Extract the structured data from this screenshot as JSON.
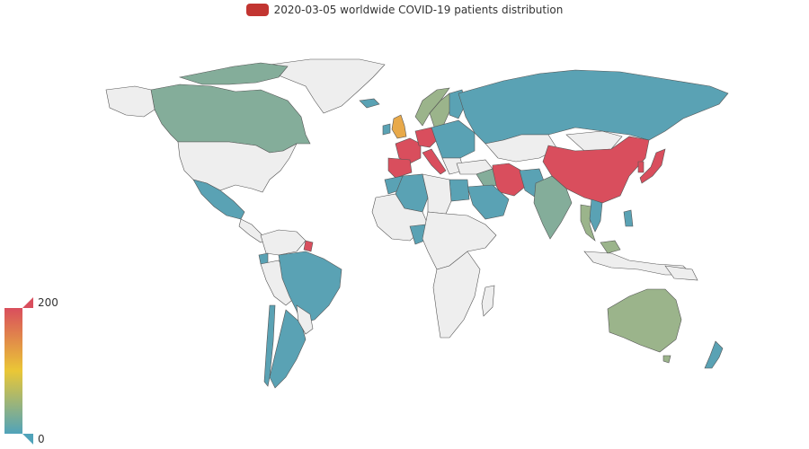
{
  "legend": {
    "label": "2020-03-05 worldwide COVID-19 patients distribution",
    "color": "#c23531"
  },
  "visual_map": {
    "max_label": "200",
    "min_label": "0",
    "colors": [
      "#d94e5d",
      "#eac736",
      "#50a3ba"
    ],
    "no_data_color": "#eeeeee",
    "border_color": "#555555"
  },
  "countries": [
    {
      "name": "China",
      "level": "high"
    },
    {
      "name": "Japan",
      "level": "high"
    },
    {
      "name": "South Korea",
      "level": "high"
    },
    {
      "name": "Iran",
      "level": "high"
    },
    {
      "name": "Italy",
      "level": "high"
    },
    {
      "name": "France",
      "level": "high"
    },
    {
      "name": "Germany",
      "level": "high"
    },
    {
      "name": "Spain",
      "level": "high"
    },
    {
      "name": "Switzerland",
      "level": "high"
    },
    {
      "name": "United Kingdom",
      "level": "mid-high"
    },
    {
      "name": "French Guiana",
      "level": "high"
    },
    {
      "name": "United States",
      "level": "none"
    },
    {
      "name": "Canada",
      "level": "mid"
    },
    {
      "name": "Australia",
      "level": "mid"
    },
    {
      "name": "Sweden",
      "level": "mid"
    },
    {
      "name": "Norway",
      "level": "mid"
    },
    {
      "name": "India",
      "level": "mid-low"
    },
    {
      "name": "Thailand",
      "level": "mid"
    },
    {
      "name": "Russia",
      "level": "low"
    },
    {
      "name": "Brazil",
      "level": "low"
    },
    {
      "name": "Mexico",
      "level": "low"
    },
    {
      "name": "Argentina",
      "level": "low"
    },
    {
      "name": "Algeria",
      "level": "low"
    },
    {
      "name": "Egypt",
      "level": "low"
    },
    {
      "name": "Saudi Arabia",
      "level": "low"
    },
    {
      "name": "Nigeria",
      "level": "low"
    },
    {
      "name": "Pakistan",
      "level": "low"
    },
    {
      "name": "New Zealand",
      "level": "low"
    },
    {
      "name": "Greenland",
      "level": "none"
    }
  ]
}
